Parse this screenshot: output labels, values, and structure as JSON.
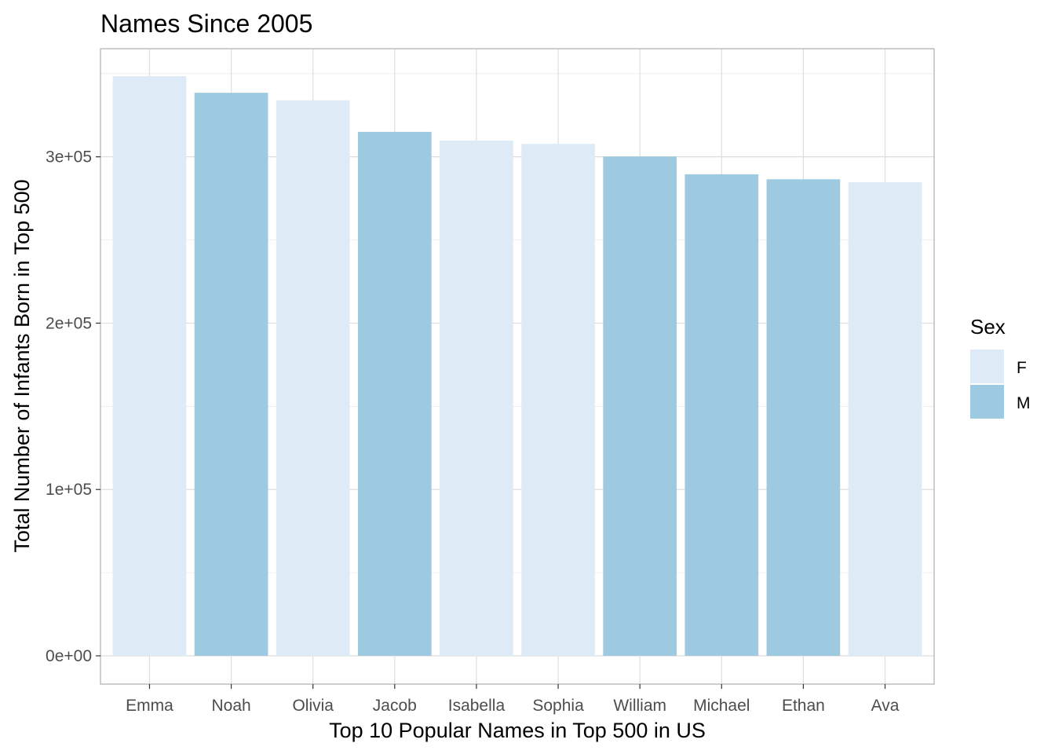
{
  "chart_data": {
    "type": "bar",
    "title": "Names Since 2005",
    "xlabel": "Top 10 Popular Names in Top 500 in US",
    "ylabel": "Total Number of Infants Born in Top 500",
    "categories": [
      "Emma",
      "Noah",
      "Olivia",
      "Jacob",
      "Isabella",
      "Sophia",
      "William",
      "Michael",
      "Ethan",
      "Ava"
    ],
    "values": [
      348500,
      338500,
      334000,
      315000,
      309800,
      307800,
      300200,
      289500,
      286500,
      284700
    ],
    "sex": [
      "F",
      "M",
      "F",
      "M",
      "F",
      "F",
      "M",
      "M",
      "M",
      "F"
    ],
    "ylim": [
      -17000,
      365000
    ],
    "yticks": [
      0,
      100000,
      200000,
      300000
    ],
    "ytick_labels": [
      "0e+00",
      "1e+05",
      "2e+05",
      "3e+05"
    ],
    "grid": true,
    "legend": {
      "title": "Sex",
      "placement": "right",
      "entries": [
        {
          "label": "F",
          "color": "#deebf7"
        },
        {
          "label": "M",
          "color": "#9ecae1"
        }
      ]
    },
    "colors": {
      "F": "#deebf7",
      "M": "#9ecae1"
    }
  }
}
